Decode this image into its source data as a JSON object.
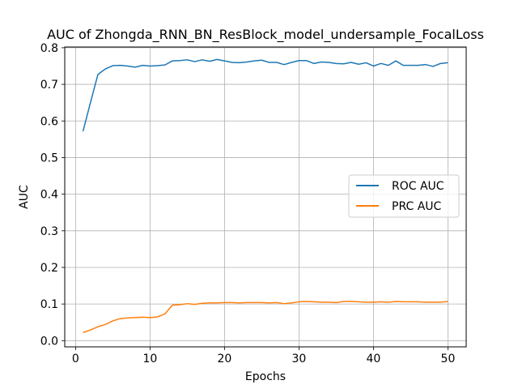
{
  "chart_data": {
    "type": "line",
    "title": "AUC of Zhongda_RNN_BN_ResBlock_model_undersample_FocalLoss",
    "xlabel": "Epochs",
    "ylabel": "AUC",
    "xlim": [
      -1.45,
      52.45
    ],
    "ylim": [
      -0.017,
      0.802
    ],
    "xticks": [
      0,
      10,
      20,
      30,
      40,
      50
    ],
    "yticks": [
      0.0,
      0.1,
      0.2,
      0.3,
      0.4,
      0.5,
      0.6,
      0.7,
      0.8
    ],
    "xtick_labels": [
      "0",
      "10",
      "20",
      "30",
      "40",
      "50"
    ],
    "ytick_labels": [
      "0.0",
      "0.1",
      "0.2",
      "0.3",
      "0.4",
      "0.5",
      "0.6",
      "0.7",
      "0.8"
    ],
    "grid": true,
    "legend_position": "center-right",
    "x": [
      1,
      2,
      3,
      4,
      5,
      6,
      7,
      8,
      9,
      10,
      11,
      12,
      13,
      14,
      15,
      16,
      17,
      18,
      19,
      20,
      21,
      22,
      23,
      24,
      25,
      26,
      27,
      28,
      29,
      30,
      31,
      32,
      33,
      34,
      35,
      36,
      37,
      38,
      39,
      40,
      41,
      42,
      43,
      44,
      45,
      46,
      47,
      48,
      49,
      50
    ],
    "series": [
      {
        "name": "ROC AUC",
        "color": "#1f77b4",
        "values": [
          0.572,
          0.65,
          0.727,
          0.742,
          0.751,
          0.752,
          0.75,
          0.747,
          0.752,
          0.75,
          0.751,
          0.753,
          0.764,
          0.765,
          0.767,
          0.762,
          0.767,
          0.763,
          0.768,
          0.764,
          0.76,
          0.759,
          0.761,
          0.764,
          0.766,
          0.76,
          0.76,
          0.754,
          0.76,
          0.765,
          0.765,
          0.757,
          0.761,
          0.76,
          0.757,
          0.756,
          0.76,
          0.755,
          0.759,
          0.75,
          0.757,
          0.752,
          0.764,
          0.752,
          0.752,
          0.752,
          0.754,
          0.749,
          0.757,
          0.759
        ]
      },
      {
        "name": "PRC AUC",
        "color": "#ff7f0e",
        "values": [
          0.022,
          0.029,
          0.038,
          0.044,
          0.054,
          0.06,
          0.062,
          0.063,
          0.064,
          0.063,
          0.065,
          0.073,
          0.097,
          0.098,
          0.101,
          0.099,
          0.102,
          0.103,
          0.103,
          0.104,
          0.104,
          0.103,
          0.104,
          0.104,
          0.104,
          0.103,
          0.104,
          0.101,
          0.103,
          0.106,
          0.107,
          0.106,
          0.105,
          0.105,
          0.104,
          0.107,
          0.107,
          0.106,
          0.105,
          0.105,
          0.106,
          0.105,
          0.107,
          0.106,
          0.106,
          0.106,
          0.105,
          0.105,
          0.105,
          0.107
        ]
      }
    ]
  }
}
